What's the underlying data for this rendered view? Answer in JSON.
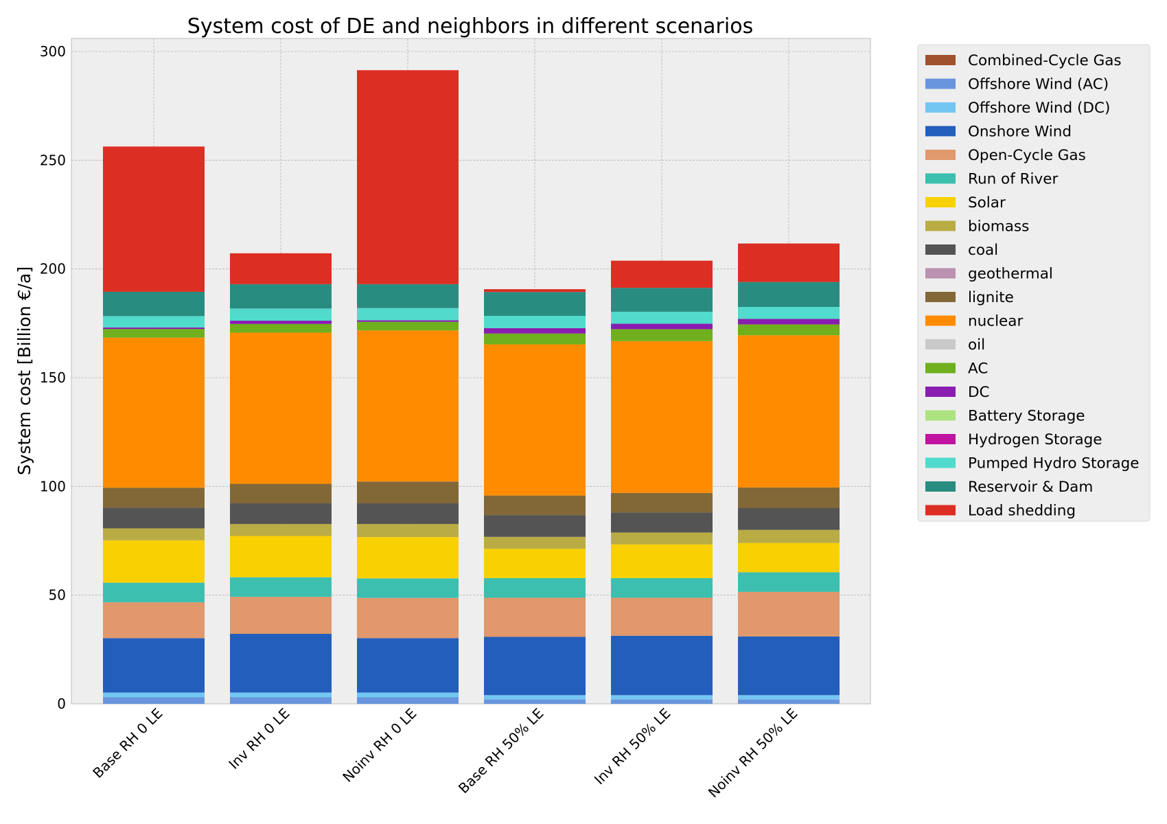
{
  "chart_data": {
    "type": "bar",
    "stacked": true,
    "title": "System cost of DE and neighbors in different scenarios",
    "xlabel": "",
    "ylabel": "System cost [Billion €/a]",
    "ylim": [
      0,
      306
    ],
    "yticks": [
      0,
      50,
      100,
      150,
      200,
      250,
      300
    ],
    "grid": true,
    "legend_position": "outside-right",
    "categories": [
      "Base RH 0 LE",
      "Inv RH 0 LE",
      "Noinv RH 0 LE",
      "Base RH 50% LE",
      "Inv RH 50% LE",
      "Noinv RH 50% LE"
    ],
    "series": [
      {
        "name": "Combined-Cycle Gas",
        "color": "#a0522d",
        "values": [
          0,
          0,
          0,
          0,
          0,
          0
        ]
      },
      {
        "name": "Offshore Wind (AC)",
        "color": "#6895dd",
        "values": [
          3,
          3,
          3,
          2,
          2,
          2
        ]
      },
      {
        "name": "Offshore Wind (DC)",
        "color": "#74c6f2",
        "values": [
          2.2,
          2.2,
          2.2,
          2,
          2,
          2
        ]
      },
      {
        "name": "Onshore Wind",
        "color": "#235ebc",
        "values": [
          25,
          27,
          25,
          26.8,
          27.3,
          27
        ]
      },
      {
        "name": "Open-Cycle Gas",
        "color": "#e0986c",
        "values": [
          16.5,
          17,
          18.5,
          18,
          17.5,
          20.5
        ]
      },
      {
        "name": "Run of River",
        "color": "#3dbfb0",
        "values": [
          9,
          9,
          9,
          9,
          9,
          9
        ]
      },
      {
        "name": "Solar",
        "color": "#f9d002",
        "values": [
          19.5,
          19,
          19,
          13.5,
          15.5,
          13.5
        ]
      },
      {
        "name": "biomass",
        "color": "#baac44",
        "values": [
          5.5,
          5.5,
          6,
          5.5,
          5.5,
          6
        ]
      },
      {
        "name": "coal",
        "color": "#545454",
        "values": [
          9.5,
          9.5,
          9.5,
          10,
          9.2,
          10
        ]
      },
      {
        "name": "geothermal",
        "color": "#ba91b1",
        "values": [
          0,
          0,
          0,
          0,
          0,
          0
        ]
      },
      {
        "name": "lignite",
        "color": "#826837",
        "values": [
          9.2,
          9,
          10,
          9,
          9,
          9.5
        ]
      },
      {
        "name": "nuclear",
        "color": "#ff8c00",
        "values": [
          69,
          69.5,
          69.5,
          69.5,
          69.8,
          70
        ]
      },
      {
        "name": "oil",
        "color": "#c9c9c9",
        "values": [
          0,
          0,
          0,
          0,
          0,
          0
        ]
      },
      {
        "name": "AC",
        "color": "#70af1d",
        "values": [
          4,
          4,
          4,
          5,
          5.5,
          5
        ]
      },
      {
        "name": "DC",
        "color": "#8a1caf",
        "values": [
          0.7,
          1.5,
          0.7,
          2.5,
          2.5,
          2.5
        ]
      },
      {
        "name": "Battery Storage",
        "color": "#ace37f",
        "values": [
          0,
          0,
          0,
          0,
          0,
          0
        ]
      },
      {
        "name": "Hydrogen Storage",
        "color": "#bf13a0",
        "values": [
          0,
          0,
          0,
          0,
          0,
          0
        ]
      },
      {
        "name": "Pumped Hydro Storage",
        "color": "#51dbcc",
        "values": [
          5.2,
          5.6,
          5.6,
          5.6,
          5.5,
          5.5
        ]
      },
      {
        "name": "Reservoir & Dam",
        "color": "#298c81",
        "values": [
          11.2,
          11.2,
          11,
          11,
          11,
          11.5
        ]
      },
      {
        "name": "Load shedding",
        "color": "#dd2e23",
        "values": [
          66.8,
          14.2,
          98.4,
          1.3,
          12.5,
          17.7
        ]
      }
    ]
  }
}
